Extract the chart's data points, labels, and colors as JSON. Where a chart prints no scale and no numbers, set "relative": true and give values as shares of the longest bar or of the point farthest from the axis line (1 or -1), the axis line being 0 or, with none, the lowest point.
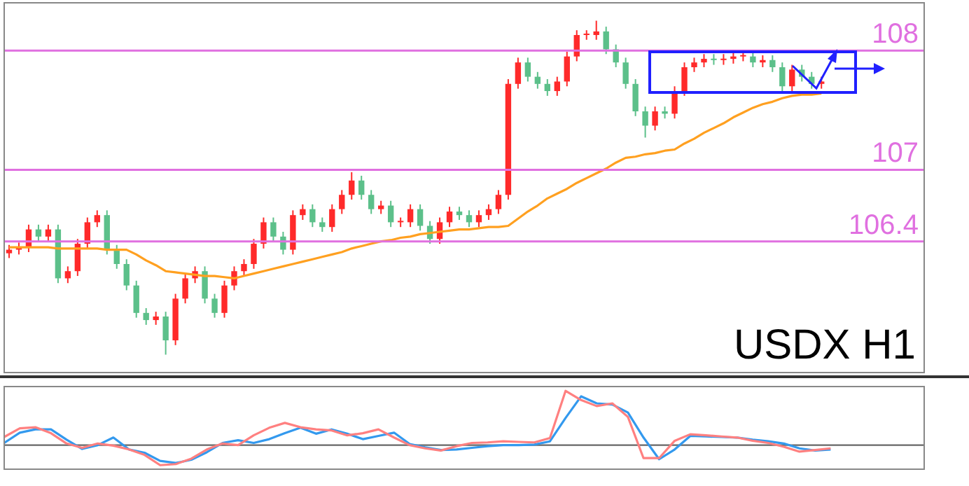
{
  "chart_data": [
    {
      "type": "candlestick",
      "categories": [
        null,
        null,
        null,
        null,
        null,
        null,
        null,
        null,
        null,
        null,
        null,
        null,
        null,
        null,
        null,
        null,
        null,
        null,
        null,
        null,
        null,
        null,
        null,
        null,
        null,
        null,
        null,
        null,
        null,
        null,
        null,
        null,
        null,
        null,
        null,
        null,
        null,
        null,
        null,
        null,
        null,
        null,
        null,
        null,
        null,
        null,
        null,
        null,
        null,
        null,
        null,
        null,
        null,
        null,
        null,
        null,
        null,
        null,
        null,
        null,
        null,
        null,
        null,
        null,
        null,
        null,
        null,
        null,
        null,
        null,
        null,
        null,
        null,
        null,
        null,
        null,
        null,
        null,
        null,
        null,
        null,
        null,
        null,
        null,
        null,
        null,
        null,
        null,
        null,
        null,
        null,
        null,
        null,
        null
      ],
      "ohlc": [
        [
          106.3,
          106.37,
          106.26,
          106.33
        ],
        [
          106.33,
          106.39,
          106.29,
          106.35
        ],
        [
          106.35,
          106.54,
          106.31,
          106.5
        ],
        [
          106.5,
          106.54,
          106.4,
          106.44
        ],
        [
          106.44,
          106.54,
          106.4,
          106.5
        ],
        [
          106.5,
          106.54,
          106.05,
          106.09
        ],
        [
          106.09,
          106.19,
          106.05,
          106.15
        ],
        [
          106.15,
          106.42,
          106.11,
          106.38
        ],
        [
          106.38,
          106.6,
          106.34,
          106.56
        ],
        [
          106.56,
          106.66,
          106.52,
          106.62
        ],
        [
          106.62,
          106.66,
          106.29,
          106.33
        ],
        [
          106.33,
          106.37,
          106.17,
          106.21
        ],
        [
          106.21,
          106.25,
          105.99,
          106.03
        ],
        [
          106.03,
          106.07,
          105.76,
          105.8
        ],
        [
          105.8,
          105.84,
          105.7,
          105.74
        ],
        [
          105.74,
          105.81,
          105.7,
          105.77
        ],
        [
          105.77,
          105.81,
          105.45,
          105.57
        ],
        [
          105.57,
          105.96,
          105.53,
          105.92
        ],
        [
          105.92,
          106.13,
          105.88,
          106.09
        ],
        [
          106.09,
          106.19,
          106.05,
          106.15
        ],
        [
          106.15,
          106.19,
          105.88,
          105.92
        ],
        [
          105.92,
          105.96,
          105.76,
          105.8
        ],
        [
          105.8,
          106.07,
          105.76,
          106.03
        ],
        [
          106.03,
          106.19,
          105.99,
          106.15
        ],
        [
          106.15,
          106.25,
          106.11,
          106.21
        ],
        [
          106.21,
          106.42,
          106.17,
          106.38
        ],
        [
          106.38,
          106.6,
          106.34,
          106.56
        ],
        [
          106.56,
          106.6,
          106.4,
          106.44
        ],
        [
          106.44,
          106.48,
          106.29,
          106.33
        ],
        [
          106.33,
          106.66,
          106.29,
          106.62
        ],
        [
          106.62,
          106.71,
          106.58,
          106.67
        ],
        [
          106.67,
          106.71,
          106.52,
          106.56
        ],
        [
          106.56,
          106.6,
          106.48,
          106.52
        ],
        [
          106.52,
          106.71,
          106.48,
          106.67
        ],
        [
          106.67,
          106.83,
          106.63,
          106.79
        ],
        [
          106.79,
          106.98,
          106.75,
          106.91
        ],
        [
          106.91,
          106.95,
          106.75,
          106.79
        ],
        [
          106.79,
          106.83,
          106.63,
          106.67
        ],
        [
          106.67,
          106.74,
          106.63,
          106.7
        ],
        [
          106.7,
          106.74,
          106.52,
          106.56
        ],
        [
          106.56,
          106.6,
          106.52,
          106.56
        ],
        [
          106.56,
          106.71,
          106.52,
          106.67
        ],
        [
          106.67,
          106.71,
          106.49,
          106.53
        ],
        [
          106.53,
          106.57,
          106.38,
          106.42
        ],
        [
          106.42,
          106.6,
          106.38,
          106.56
        ],
        [
          106.56,
          106.69,
          106.52,
          106.65
        ],
        [
          106.65,
          106.69,
          106.58,
          106.62
        ],
        [
          106.62,
          106.66,
          106.52,
          106.56
        ],
        [
          106.56,
          106.66,
          106.52,
          106.62
        ],
        [
          106.62,
          106.71,
          106.58,
          106.67
        ],
        [
          106.67,
          106.83,
          106.63,
          106.79
        ],
        [
          106.79,
          107.76,
          106.75,
          107.72
        ],
        [
          107.72,
          107.94,
          107.68,
          107.9
        ],
        [
          107.9,
          107.94,
          107.74,
          107.78
        ],
        [
          107.78,
          107.82,
          107.68,
          107.72
        ],
        [
          107.72,
          107.76,
          107.62,
          107.66
        ],
        [
          107.66,
          107.78,
          107.62,
          107.74
        ],
        [
          107.74,
          107.99,
          107.7,
          107.95
        ],
        [
          107.95,
          108.17,
          107.91,
          108.13
        ],
        [
          108.13,
          108.17,
          108.09,
          108.13
        ],
        [
          108.13,
          108.25,
          108.09,
          108.16
        ],
        [
          108.16,
          108.2,
          107.97,
          108.01
        ],
        [
          108.01,
          108.05,
          107.86,
          107.9
        ],
        [
          107.9,
          107.94,
          107.68,
          107.72
        ],
        [
          107.72,
          107.76,
          107.45,
          107.49
        ],
        [
          107.49,
          107.53,
          107.27,
          107.37
        ],
        [
          107.37,
          107.53,
          107.33,
          107.49
        ],
        [
          107.49,
          107.53,
          107.43,
          107.47
        ],
        [
          107.47,
          107.7,
          107.43,
          107.66
        ],
        [
          107.66,
          107.9,
          107.62,
          107.86
        ],
        [
          107.86,
          107.94,
          107.82,
          107.9
        ],
        [
          107.9,
          107.97,
          107.86,
          107.93
        ],
        [
          107.93,
          107.97,
          107.88,
          107.92
        ],
        [
          107.92,
          107.97,
          107.88,
          107.93
        ],
        [
          107.93,
          107.99,
          107.89,
          107.95
        ],
        [
          107.95,
          107.99,
          107.91,
          107.95
        ],
        [
          107.95,
          107.99,
          107.86,
          107.9
        ],
        [
          107.9,
          107.96,
          107.86,
          107.92
        ],
        [
          107.92,
          107.96,
          107.82,
          107.86
        ],
        [
          107.86,
          107.9,
          107.66,
          107.7
        ],
        [
          107.7,
          107.88,
          107.66,
          107.84
        ],
        [
          107.84,
          107.88,
          107.74,
          107.78
        ],
        [
          107.78,
          107.82,
          107.68,
          107.72
        ],
        [
          107.72,
          107.78,
          107.68,
          107.74
        ],
        null,
        null,
        null,
        null,
        null,
        null,
        null,
        null,
        null,
        null
      ],
      "colors": [
        "#ff2a2a",
        "#ff2a2a",
        "#ff2a2a",
        "#5cc08a",
        "#ff2a2a",
        "#5cc08a",
        "#ff2a2a",
        "#ff2a2a",
        "#ff2a2a",
        "#ff2a2a",
        "#5cc08a",
        "#5cc08a",
        "#5cc08a",
        "#5cc08a",
        "#5cc08a",
        "#ff2a2a",
        "#5cc08a",
        "#ff2a2a",
        "#ff2a2a",
        "#ff2a2a",
        "#5cc08a",
        "#5cc08a",
        "#ff2a2a",
        "#ff2a2a",
        "#ff2a2a",
        "#ff2a2a",
        "#ff2a2a",
        "#5cc08a",
        "#5cc08a",
        "#ff2a2a",
        "#ff2a2a",
        "#5cc08a",
        "#5cc08a",
        "#ff2a2a",
        "#ff2a2a",
        "#ff2a2a",
        "#5cc08a",
        "#5cc08a",
        "#ff2a2a",
        "#5cc08a",
        "#ff2a2a",
        "#ff2a2a",
        "#5cc08a",
        "#5cc08a",
        "#ff2a2a",
        "#ff2a2a",
        "#5cc08a",
        "#5cc08a",
        "#ff2a2a",
        "#ff2a2a",
        "#ff2a2a",
        "#ff2a2a",
        "#ff2a2a",
        "#5cc08a",
        "#5cc08a",
        "#5cc08a",
        "#ff2a2a",
        "#ff2a2a",
        "#ff2a2a",
        "#ff2a2a",
        "#ff2a2a",
        "#5cc08a",
        "#5cc08a",
        "#5cc08a",
        "#5cc08a",
        "#5cc08a",
        "#ff2a2a",
        "#5cc08a",
        "#ff2a2a",
        "#ff2a2a",
        "#ff2a2a",
        "#ff2a2a",
        "#5cc08a",
        "#ff2a2a",
        "#ff2a2a",
        "#ff2a2a",
        "#5cc08a",
        "#ff2a2a",
        "#5cc08a",
        "#5cc08a",
        "#ff2a2a",
        "#5cc08a",
        "#5cc08a",
        "#ff2a2a",
        null,
        null,
        null,
        null,
        null,
        null,
        null,
        null,
        null,
        null
      ],
      "series": [
        {
          "type": "line",
          "color": "#ffa020",
          "values": [
            106.35,
            106.35,
            106.35,
            106.35,
            106.35,
            106.34,
            106.34,
            106.34,
            106.34,
            106.34,
            106.33,
            106.33,
            106.33,
            106.29,
            106.24,
            106.2,
            106.15,
            106.14,
            106.13,
            106.12,
            106.11,
            106.11,
            106.1,
            106.09,
            106.11,
            106.13,
            106.15,
            106.17,
            106.19,
            106.21,
            106.23,
            106.25,
            106.27,
            106.29,
            106.31,
            106.34,
            106.36,
            106.38,
            106.4,
            106.41,
            106.43,
            106.44,
            106.46,
            106.47,
            106.48,
            106.49,
            106.5,
            106.5,
            106.51,
            106.52,
            106.52,
            106.53,
            106.59,
            106.65,
            106.7,
            106.76,
            106.8,
            106.84,
            106.89,
            106.93,
            106.97,
            107.01,
            107.06,
            107.1,
            107.11,
            107.13,
            107.14,
            107.16,
            107.17,
            107.22,
            107.26,
            107.31,
            107.35,
            107.39,
            107.44,
            107.48,
            107.52,
            107.55,
            107.57,
            107.6,
            107.62,
            107.63,
            107.63,
            107.64,
            null,
            null,
            null,
            null,
            null,
            null,
            null,
            null,
            null,
            null
          ]
        }
      ],
      "ylim": [
        105.3,
        108.4
      ],
      "tick_labels": false,
      "ref_lines": [
        {
          "axis": "y",
          "value": 108,
          "label": "108",
          "color": "#e070e0"
        },
        {
          "axis": "y",
          "value": 107,
          "label": "107",
          "color": "#e070e0"
        },
        {
          "axis": "y",
          "value": 106.4,
          "label": "106.4",
          "color": "#e070e0"
        }
      ],
      "annotations": [
        "USDX H1"
      ]
    },
    {
      "type": "line",
      "relative": true,
      "tick_labels": false,
      "categories": [
        null,
        null,
        null,
        null,
        null,
        null,
        null,
        null,
        null,
        null,
        null,
        null,
        null,
        null,
        null,
        null,
        null,
        null,
        null,
        null,
        null,
        null,
        null,
        null,
        null,
        null,
        null,
        null,
        null,
        null,
        null,
        null,
        null,
        null,
        null,
        null,
        null,
        null,
        null,
        null,
        null,
        null,
        null,
        null,
        null,
        null,
        null,
        null,
        null,
        null,
        null,
        null,
        null,
        null,
        null,
        null,
        null,
        null,
        null,
        null
      ],
      "series": [
        {
          "color": "#ff8080",
          "values": [
            0.15,
            0.31,
            0.33,
            0.22,
            0.03,
            -0.05,
            0.03,
            -0.01,
            -0.08,
            -0.18,
            -0.37,
            -0.35,
            -0.25,
            -0.08,
            0.03,
            0,
            0.18,
            0.32,
            0.41,
            0.33,
            0.29,
            0.27,
            0.18,
            0.22,
            0.29,
            0.14,
            0,
            -0.06,
            -0.1,
            -0.02,
            0.04,
            0.05,
            0.07,
            0.06,
            0.05,
            0.13,
            1,
            0.83,
            0.72,
            0.77,
            0.52,
            -0.24,
            -0.24,
            0.08,
            0.2,
            0.18,
            0.16,
            0.14,
            0.08,
            0.04,
            -0.03,
            -0.12,
            -0.09,
            -0.06,
            null,
            null,
            null,
            null,
            null,
            null
          ]
        },
        {
          "color": "#3399ee",
          "values": [
            0.04,
            0.23,
            0.29,
            0.29,
            0.1,
            -0.07,
            0,
            0.14,
            -0.08,
            -0.14,
            -0.29,
            -0.33,
            -0.27,
            -0.13,
            0.04,
            0.09,
            0.04,
            0.11,
            0.22,
            0.32,
            0.21,
            0.29,
            0.21,
            0.11,
            0.17,
            0.23,
            0.02,
            -0.04,
            -0.09,
            -0.08,
            -0.05,
            -0.02,
            0,
            0,
            0.01,
            0.07,
            0.5,
            0.9,
            0.77,
            0.75,
            0.6,
            0.14,
            -0.26,
            -0.08,
            0.17,
            0.16,
            0.15,
            0.14,
            0.1,
            0.07,
            0.03,
            -0.06,
            -0.1,
            -0.08,
            null,
            null,
            null,
            null,
            null,
            null
          ]
        }
      ]
    }
  ]
}
